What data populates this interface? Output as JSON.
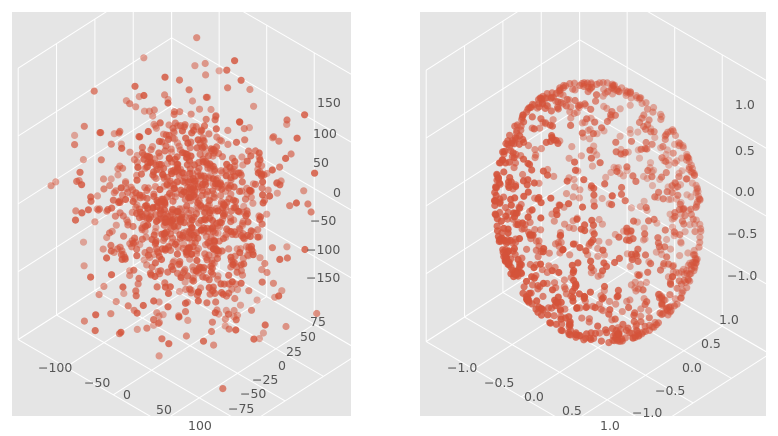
{
  "chart_data": [
    {
      "type": "scatter",
      "projection": "3d",
      "style": "ggplot",
      "grid": true,
      "title": "",
      "point_color": "#D4533A",
      "distribution": "roughly uniform cloud",
      "n_points_approx": 1000,
      "xlim": [
        -100,
        100
      ],
      "ylim": [
        -75,
        75
      ],
      "zlim": [
        -150,
        150
      ],
      "x_ticks": [
        "−100",
        "−50",
        "0",
        "50",
        "100"
      ],
      "y_ticks": [
        "−75",
        "−50",
        "−25",
        "0",
        "25",
        "50",
        "75"
      ],
      "z_ticks": [
        "150",
        "100",
        "50",
        "0",
        "−50",
        "−100",
        "−150"
      ]
    },
    {
      "type": "scatter",
      "projection": "3d",
      "style": "ggplot",
      "grid": true,
      "title": "",
      "point_color": "#D4533A",
      "distribution": "points on the surface of a unit sphere",
      "n_points_approx": 1000,
      "xlim": [
        -1.0,
        1.0
      ],
      "ylim": [
        -1.0,
        1.0
      ],
      "zlim": [
        -1.0,
        1.0
      ],
      "x_ticks": [
        "−1.0",
        "−0.5",
        "0.0",
        "0.5",
        "1.0"
      ],
      "y_ticks": [
        "−1.0",
        "−0.5",
        "0.0",
        "0.5",
        "1.0"
      ],
      "z_ticks": [
        "1.0",
        "0.5",
        "0.0",
        "−0.5",
        "−1.0"
      ]
    }
  ]
}
